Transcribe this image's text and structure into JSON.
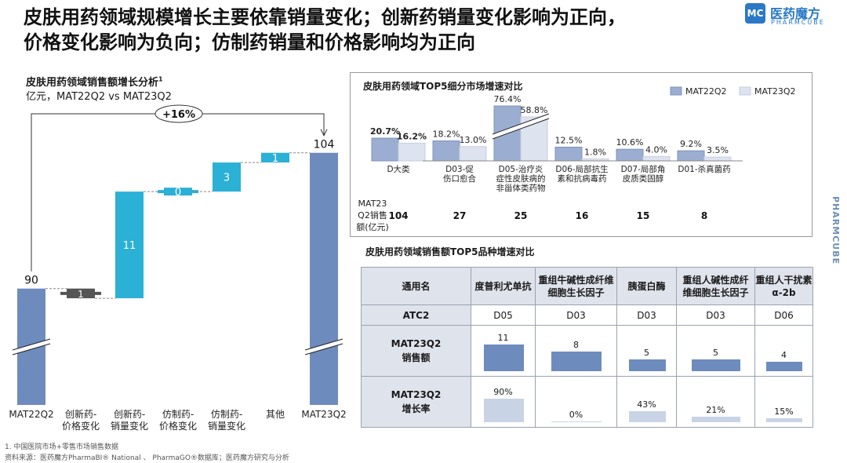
{
  "title_line1": "皮肤用药领域规模增长主要依靠销量变化；创新药销量变化影响为正向，",
  "title_line2": "价格变化影响为负向；仿制药销量和价格影响均为正向",
  "logo": {
    "cn": "医药魔方",
    "en": "PHARMCUBE",
    "mark": "MC"
  },
  "side_brand": "PHARMCUBE",
  "waterfall": {
    "subtitle": "皮肤用药领域销售额增长分析",
    "subtitle_sup": "1",
    "unit": "亿元，MAT22Q2 vs MAT23Q2",
    "growth_label": "+16%",
    "colors": {
      "total": "#6e8bbd",
      "positive": "#2bb0d6",
      "negative": "#555555"
    }
  },
  "chart_data": [
    {
      "type": "bar",
      "title": "皮肤用药领域销售额增长分析",
      "subtype": "waterfall",
      "categories": [
        "MAT22Q2",
        "创新药-价格变化",
        "创新药-销量变化",
        "仿制药-价格变化",
        "仿制药-销量变化",
        "其他",
        "MAT23Q2"
      ],
      "category_lines": [
        [
          "MAT22Q2"
        ],
        [
          "创新药-",
          "价格变化"
        ],
        [
          "创新药-",
          "销量变化"
        ],
        [
          "仿制药-",
          "价格变化"
        ],
        [
          "仿制药-",
          "销量变化"
        ],
        [
          "其他"
        ],
        [
          "MAT23Q2"
        ]
      ],
      "values": [
        90,
        -1,
        11,
        0,
        3,
        1,
        104
      ],
      "value_labels": [
        "90",
        "1",
        "11",
        "0",
        "3",
        "1",
        "104"
      ],
      "kinds": [
        "total",
        "negative",
        "positive",
        "positive",
        "positive",
        "positive",
        "total"
      ],
      "ylim": [
        78,
        106
      ],
      "axis_break": true
    },
    {
      "type": "bar",
      "title": "皮肤用药领域TOP5细分市场增速对比",
      "categories": [
        "D大类",
        "D03-促伤口愈合",
        "D05-治疗炎症性皮肤病的非甾体类药物",
        "D06-局部抗生素和抗病毒药",
        "D07-局部角皮质类固醇",
        "D01-杀真菌药"
      ],
      "category_lines": [
        [
          "D大类"
        ],
        [
          "D03-促",
          "伤口愈合"
        ],
        [
          "D05-治疗炎",
          "症性皮肤病的",
          "非甾体类药物"
        ],
        [
          "D06-局部抗生",
          "素和抗病毒药"
        ],
        [
          "D07-局部角",
          "皮质类固醇"
        ],
        [
          "D01-杀真菌药"
        ]
      ],
      "series": [
        {
          "name": "MAT22Q2",
          "values": [
            20.7,
            18.2,
            76.4,
            12.5,
            10.6,
            9.2
          ],
          "labels": [
            "20.7%",
            "18.2%",
            "76.4%",
            "12.5%",
            "10.6%",
            "9.2%"
          ],
          "color": "#9badd0"
        },
        {
          "name": "MAT23Q2",
          "values": [
            16.2,
            13.0,
            58.8,
            1.8,
            4.0,
            3.5
          ],
          "labels": [
            "16.2%",
            "13.0%",
            "58.8%",
            "1.8%",
            "4.0%",
            "3.5%"
          ],
          "color": "#dde3ef"
        }
      ],
      "bold_labels": [
        "20.7%",
        "16.2%"
      ],
      "axis_break": true,
      "sales_row_label": [
        "MAT23",
        "Q2销售",
        "额(亿元)"
      ],
      "sales": [
        "104",
        "27",
        "25",
        "16",
        "15",
        "8"
      ]
    },
    {
      "type": "table",
      "title": "皮肤用药领域销售额TOP5品种增速对比",
      "corner_header": "通用名",
      "products": [
        "度普利尤单抗",
        "重组牛碱性成纤维细胞生长因子",
        "胰蛋白酶",
        "重组人碱性成纤维细胞生长因子",
        "重组人干扰素α-2b"
      ],
      "product_lines": [
        [
          "度普利尤单抗"
        ],
        [
          "重组牛碱性成纤维",
          "细胞生长因子"
        ],
        [
          "胰蛋白酶"
        ],
        [
          "重组人碱性成纤",
          "维细胞生长因子"
        ],
        [
          "重组人干扰素",
          "α-2b"
        ]
      ],
      "atc2_header": "ATC2",
      "atc2": [
        "D05",
        "D03",
        "D03",
        "D03",
        "D06"
      ],
      "sales_header": [
        "MAT23Q2",
        "销售额"
      ],
      "sales": [
        11,
        8,
        5,
        5,
        4
      ],
      "sales_labels": [
        "11",
        "8",
        "5",
        "5",
        "4"
      ],
      "growth_header": [
        "MAT23Q2",
        "增长率"
      ],
      "growth": [
        90,
        0,
        43,
        21,
        15
      ],
      "growth_labels": [
        "90%",
        "0%",
        "43%",
        "21%",
        "15%"
      ],
      "colors": {
        "sales": "#6e8bbd",
        "growth": "#c9d3e6"
      }
    }
  ],
  "footnote": "1. 中国医院市场+零售市场销售数据",
  "source": "资料来源：医药魔方PharmaBI® National 、 PharmaGO®数据库；医药魔方研究与分析"
}
